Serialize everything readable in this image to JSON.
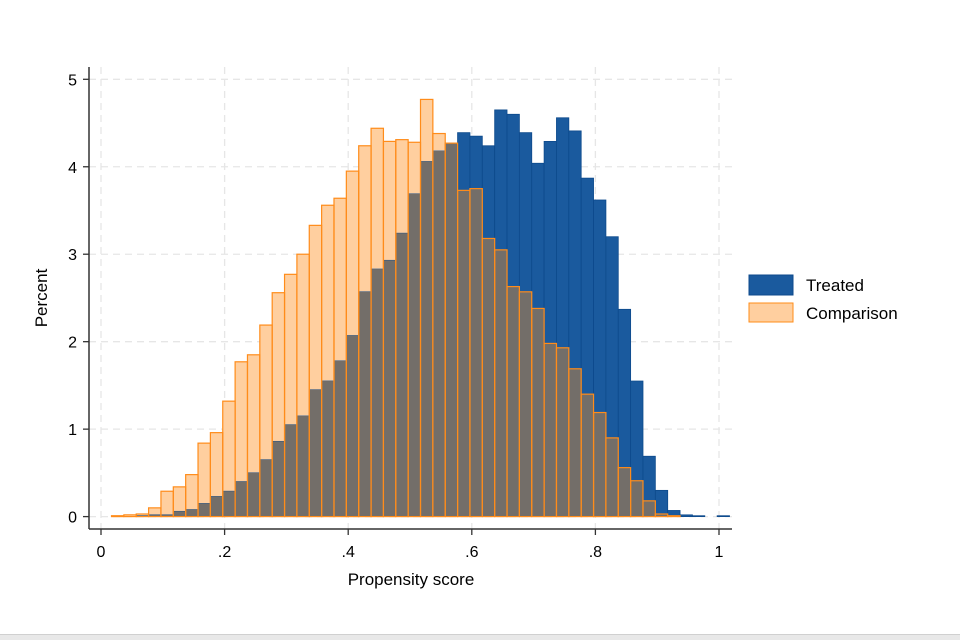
{
  "chart_data": {
    "type": "bar",
    "subtype": "overlaid-histogram",
    "title": "",
    "xlabel": "Propensity score",
    "ylabel": "Percent",
    "xlim": [
      0,
      1
    ],
    "ylim": [
      0,
      5
    ],
    "xticks": [
      0,
      0.2,
      0.4,
      0.6,
      0.8,
      1
    ],
    "xtick_labels": [
      "0",
      ".2",
      ".4",
      ".6",
      ".8",
      "1"
    ],
    "yticks": [
      0,
      1,
      2,
      3,
      4,
      5
    ],
    "ytick_labels": [
      "0",
      "1",
      "2",
      "3",
      "4",
      "5"
    ],
    "grid": true,
    "legend_position": "right",
    "bin_width": 0.02,
    "x": [
      0.027,
      0.047,
      0.067,
      0.087,
      0.107,
      0.127,
      0.147,
      0.167,
      0.187,
      0.207,
      0.227,
      0.247,
      0.267,
      0.287,
      0.307,
      0.327,
      0.347,
      0.367,
      0.387,
      0.407,
      0.427,
      0.447,
      0.467,
      0.487,
      0.507,
      0.527,
      0.547,
      0.567,
      0.587,
      0.607,
      0.627,
      0.647,
      0.667,
      0.687,
      0.707,
      0.727,
      0.747,
      0.767,
      0.787,
      0.807,
      0.827,
      0.847,
      0.867,
      0.887,
      0.907,
      0.927,
      0.947,
      0.967,
      0.987,
      1.007
    ],
    "series": [
      {
        "name": "Treated",
        "color": "#1a5a9e",
        "edge": "#0d4a8c",
        "values": [
          0,
          0,
          0.01,
          0.02,
          0.02,
          0.06,
          0.08,
          0.15,
          0.23,
          0.29,
          0.4,
          0.5,
          0.65,
          0.86,
          1.05,
          1.15,
          1.45,
          1.55,
          1.78,
          2.07,
          2.57,
          2.83,
          2.93,
          3.24,
          3.69,
          4.06,
          4.18,
          4.27,
          4.39,
          4.35,
          4.24,
          4.65,
          4.6,
          4.39,
          4.04,
          4.29,
          4.56,
          4.41,
          3.87,
          3.62,
          3.2,
          2.37,
          1.55,
          0.69,
          0.3,
          0.07,
          0.02,
          0.01,
          0,
          0.01
        ]
      },
      {
        "name": "Comparison",
        "color": "#ffcf9f",
        "edge": "#ff8c1a",
        "values": [
          0.01,
          0.02,
          0.03,
          0.1,
          0.29,
          0.34,
          0.48,
          0.84,
          0.96,
          1.32,
          1.77,
          1.85,
          2.19,
          2.56,
          2.77,
          3.0,
          3.33,
          3.56,
          3.64,
          3.95,
          4.24,
          4.44,
          4.29,
          4.31,
          4.28,
          4.77,
          4.38,
          4.27,
          3.73,
          3.75,
          3.18,
          3.05,
          2.63,
          2.57,
          2.38,
          1.98,
          1.93,
          1.69,
          1.4,
          1.19,
          0.9,
          0.56,
          0.41,
          0.18,
          0.03,
          0.01,
          0,
          0,
          0,
          0
        ]
      }
    ],
    "overlap_color": "#736e69"
  }
}
